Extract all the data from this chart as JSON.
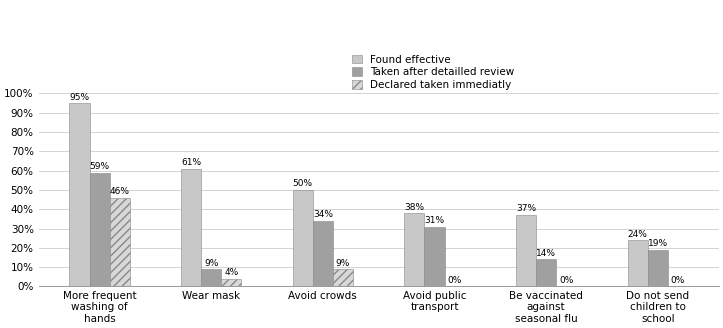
{
  "categories": [
    "More frequent\nwashing of\nhands",
    "Wear mask",
    "Avoid crowds",
    "Avoid public\ntransport",
    "Be vaccinated\nagainst\nseasonal flu",
    "Do not send\nchildren to\nschool"
  ],
  "series": {
    "Found effective": [
      95,
      61,
      50,
      38,
      37,
      24
    ],
    "Taken after detailled review": [
      59,
      9,
      34,
      31,
      14,
      19
    ],
    "Declared taken immediatly": [
      46,
      4,
      9,
      0,
      0,
      0
    ]
  },
  "legend_labels": [
    "Found effective",
    "Taken after detailled review",
    "Declared taken immediatly"
  ],
  "bar_colors": [
    "#c8c8c8",
    "#a0a0a0",
    "#d8d8d8"
  ],
  "bar_hatches": [
    null,
    null,
    "////"
  ],
  "ylim": [
    0,
    105
  ],
  "yticks": [
    0,
    10,
    20,
    30,
    40,
    50,
    60,
    70,
    80,
    90,
    100
  ],
  "ytick_labels": [
    "0%",
    "10%",
    "20%",
    "30%",
    "40%",
    "50%",
    "60%",
    "70%",
    "80%",
    "90%",
    "100%"
  ],
  "bar_width": 0.18,
  "label_fontsize": 6.5,
  "tick_fontsize": 7.5,
  "legend_fontsize": 7.5
}
